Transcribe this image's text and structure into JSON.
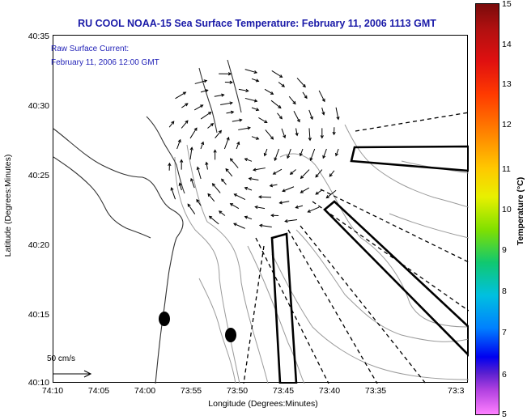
{
  "title": "RU COOL  NOAA-15  Sea Surface Temperature:  February 11, 2006 1113 GMT",
  "current_label": "Raw Surface Current:",
  "current_time": "February 11, 2006 12:00 GMT",
  "axes": {
    "xlabel": "Longitude (Degrees:Minutes)",
    "ylabel": "Latitude (Degrees:Minutes)",
    "x_ticks": [
      "74:10",
      "74:05",
      "74:00",
      "73:55",
      "73:50",
      "73:45",
      "73:40",
      "73:35",
      "73:3"
    ],
    "y_ticks": [
      "40:35",
      "40:30",
      "40:25",
      "40:20",
      "40:15",
      "40:10"
    ]
  },
  "scale_arrow_label": "50 cm/s",
  "colorbar": {
    "label": "Temperature (°C)",
    "ticks": [
      "15",
      "14",
      "13",
      "12",
      "11",
      "10",
      "9",
      "8",
      "7",
      "6",
      "5"
    ],
    "min": 5,
    "max": 15
  },
  "colors": {
    "title": "#1a1aa8",
    "raw_label": "#2323b8",
    "coast": "#333333",
    "contour": "#9a9a9a"
  }
}
